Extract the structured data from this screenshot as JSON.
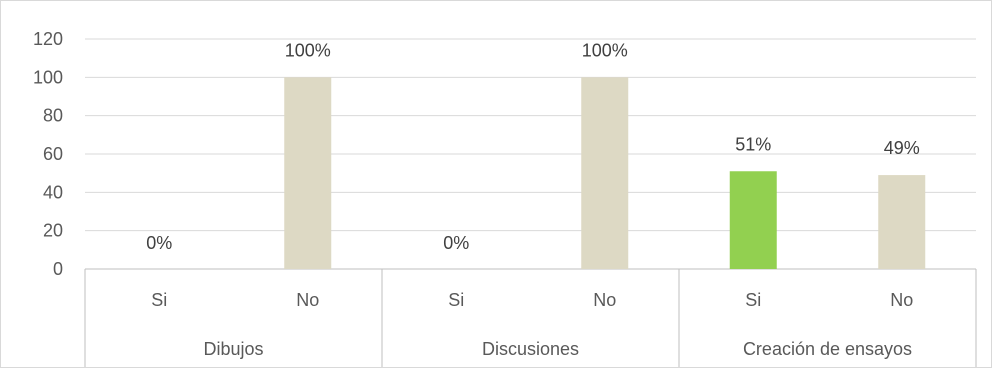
{
  "chart_data": {
    "type": "bar",
    "groups": [
      {
        "name": "Dibujos",
        "categories": [
          "Si",
          "No"
        ],
        "values": [
          0,
          100
        ],
        "labels": [
          "0%",
          "100%"
        ]
      },
      {
        "name": "Discusiones",
        "categories": [
          "Si",
          "No"
        ],
        "values": [
          0,
          100
        ],
        "labels": [
          "0%",
          "100%"
        ]
      },
      {
        "name": "Creación de ensayos",
        "categories": [
          "Si",
          "No"
        ],
        "values": [
          51,
          49
        ],
        "labels": [
          "51%",
          "49%"
        ]
      }
    ],
    "y_ticks": [
      "0",
      "20",
      "40",
      "60",
      "80",
      "100",
      "120"
    ],
    "ylim": [
      0,
      120
    ],
    "grid": true,
    "colors": {
      "Si": "#92d050",
      "No": "#ddd9c4"
    }
  }
}
